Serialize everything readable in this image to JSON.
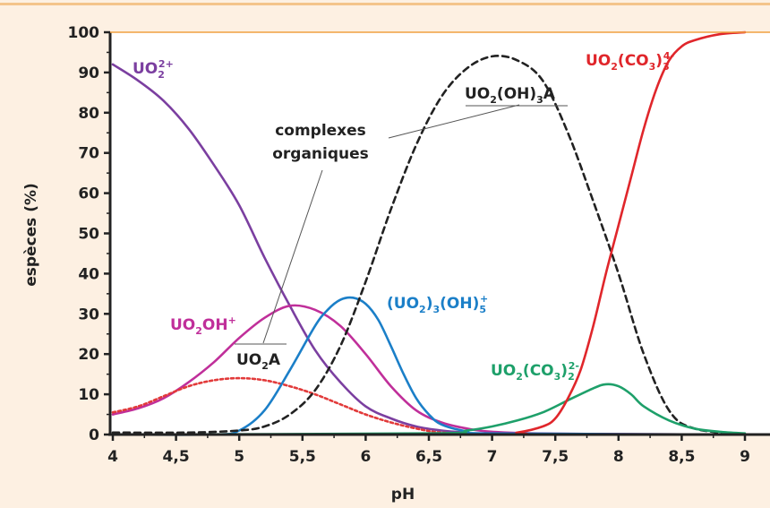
{
  "colors": {
    "background": "#fdf0e2",
    "plot_background": "#ffffff",
    "axis": "#222222",
    "frame": "#f0a040",
    "UO2_2plus": "#7b3fa0",
    "UO2OH_plus": "#c02f9a",
    "UO2A": "#e23a3a",
    "UO2_3_OH_5": "#1b7fc8",
    "UO2_OH_3A": "#222222",
    "UO2_CO3_2": "#1ea06a",
    "UO2_CO3_3": "#e0262b",
    "leader": "#555555"
  },
  "chart_data": {
    "type": "line",
    "xlabel": "pH",
    "ylabel": "espèces (%)",
    "xlim": [
      4,
      9
    ],
    "ylim": [
      0,
      100
    ],
    "x_ticks": [
      4,
      4.5,
      5,
      5.5,
      6,
      6.5,
      7,
      7.5,
      8,
      8.5,
      9
    ],
    "x_tick_labels": [
      "4",
      "4,5",
      "5",
      "5,5",
      "6",
      "6,5",
      "7",
      "7,5",
      "8",
      "8,5",
      "9"
    ],
    "y_ticks": [
      0,
      10,
      20,
      30,
      40,
      50,
      60,
      70,
      80,
      90,
      100
    ],
    "y_tick_labels": [
      "0",
      "10",
      "20",
      "30",
      "40",
      "50",
      "60",
      "70",
      "80",
      "90",
      "100"
    ],
    "grid": false,
    "series": [
      {
        "id": "uo2",
        "color_key": "UO2_2plus",
        "dash": "solid",
        "x": [
          4,
          4.2,
          4.4,
          4.6,
          4.8,
          5.0,
          5.2,
          5.4,
          5.6,
          5.8,
          6.0,
          6.2,
          6.4,
          6.6,
          6.8,
          7.0,
          9.0
        ],
        "y": [
          92,
          88,
          83,
          76,
          67,
          57,
          44,
          32,
          21,
          13,
          7,
          4,
          2,
          1,
          0.5,
          0.2,
          0
        ]
      },
      {
        "id": "uo2oh",
        "color_key": "UO2OH_plus",
        "dash": "solid",
        "x": [
          4,
          4.2,
          4.4,
          4.6,
          4.8,
          5.0,
          5.2,
          5.4,
          5.6,
          5.8,
          6.0,
          6.2,
          6.4,
          6.6,
          6.8,
          7.0,
          7.5,
          9.0
        ],
        "y": [
          5,
          6.5,
          9,
          13,
          18,
          24,
          29,
          32,
          31,
          27,
          20,
          12,
          6,
          3,
          1.5,
          0.7,
          0.2,
          0
        ]
      },
      {
        "id": "uo2a",
        "color_key": "UO2A",
        "dash": "dotted",
        "x": [
          4,
          4.2,
          4.4,
          4.6,
          4.8,
          5.0,
          5.2,
          5.4,
          5.6,
          5.8,
          6.0,
          6.2,
          6.4,
          6.6,
          7.0
        ],
        "y": [
          5.5,
          7,
          9.5,
          12,
          13.5,
          14,
          13.5,
          12,
          10,
          7.5,
          5,
          3,
          1.5,
          0.5,
          0
        ]
      },
      {
        "id": "uo2_3oh5",
        "color_key": "UO2_3_OH_5",
        "dash": "solid",
        "x": [
          4,
          4.8,
          5.0,
          5.2,
          5.4,
          5.6,
          5.7,
          5.8,
          5.9,
          6.0,
          6.1,
          6.2,
          6.3,
          6.4,
          6.5,
          6.6,
          6.8,
          7.0,
          9.0
        ],
        "y": [
          0,
          0,
          1,
          6,
          16,
          27,
          31,
          33.5,
          34,
          32.5,
          28.5,
          22,
          15,
          9,
          5,
          2.5,
          0.8,
          0.3,
          0
        ]
      },
      {
        "id": "uo2oh3a",
        "color_key": "UO2_OH_3A",
        "dash": "dashed",
        "x": [
          4,
          4.6,
          5.0,
          5.2,
          5.4,
          5.6,
          5.8,
          6.0,
          6.2,
          6.4,
          6.6,
          6.8,
          7.0,
          7.2,
          7.4,
          7.6,
          7.8,
          8.0,
          8.2,
          8.4,
          8.6,
          9.0
        ],
        "y": [
          0.5,
          0.5,
          1,
          2,
          5,
          11,
          22,
          38,
          56,
          72,
          84,
          91,
          94,
          93,
          88,
          75,
          58,
          40,
          20,
          6,
          1.5,
          0
        ]
      },
      {
        "id": "uo2co32",
        "color_key": "UO2_CO3_2",
        "dash": "solid",
        "x": [
          4,
          6.5,
          6.8,
          7.0,
          7.2,
          7.4,
          7.6,
          7.8,
          7.9,
          8.0,
          8.1,
          8.2,
          8.4,
          8.6,
          8.8,
          9.0
        ],
        "y": [
          0,
          0.3,
          1,
          2,
          3.5,
          5.5,
          8.5,
          11.5,
          12.5,
          12,
          10,
          7,
          3.5,
          1.5,
          0.7,
          0.3
        ]
      },
      {
        "id": "uo2co33",
        "color_key": "UO2_CO3_3",
        "dash": "solid",
        "x": [
          4,
          7.0,
          7.2,
          7.4,
          7.5,
          7.6,
          7.7,
          7.8,
          7.9,
          8.0,
          8.1,
          8.2,
          8.3,
          8.4,
          8.5,
          8.6,
          8.8,
          9.0
        ],
        "y": [
          0,
          0,
          0.5,
          2,
          4,
          9,
          16,
          27,
          40,
          52,
          64,
          76,
          86,
          93,
          96.5,
          98,
          99.5,
          100
        ]
      }
    ],
    "annotations": {
      "uo2": {
        "main": "UO",
        "sub": "2",
        "sup": "2+"
      },
      "uo2oh": {
        "main": "UO",
        "sub": "2",
        "tail": "OH",
        "sup": "+"
      },
      "uo2a": {
        "main": "UO",
        "sub": "2",
        "tail": "A"
      },
      "uo2_3oh5": {
        "p1": "(UO",
        "s1": "2",
        "p2": ")",
        "s2": "3",
        "p3": "(OH)",
        "sub": "5",
        "sup": "+"
      },
      "uo2oh3a": {
        "p1": "UO",
        "s1": "2",
        "p2": "(OH)",
        "s2": "3",
        "p3": "A"
      },
      "uo2co32": {
        "p1": "UO",
        "s1": "2",
        "p2": "(CO",
        "s2": "3",
        "p3": ")",
        "sub": "2",
        "sup": "2-"
      },
      "uo2co33": {
        "p1": "UO",
        "s1": "2",
        "p2": "(CO",
        "s2": "3",
        "p3": ")",
        "sub": "3",
        "sup": "4-"
      },
      "complexes": {
        "line1": "complexes",
        "line2": "organiques"
      }
    }
  }
}
